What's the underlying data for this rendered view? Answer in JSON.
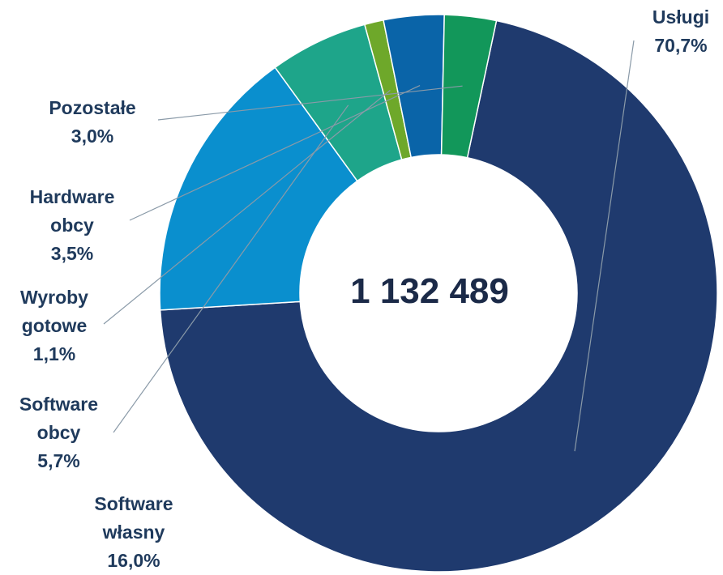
{
  "chart_data": {
    "type": "pie",
    "center_label": "1 132 489",
    "slices": [
      {
        "name_lines": [
          "Usługi"
        ],
        "value": 70.7,
        "value_label": "70,7%",
        "color": "#1f3a6e"
      },
      {
        "name_lines": [
          "Software",
          "własny"
        ],
        "value": 16.0,
        "value_label": "16,0%",
        "color": "#0a8fce"
      },
      {
        "name_lines": [
          "Software",
          "obcy"
        ],
        "value": 5.7,
        "value_label": "5,7%",
        "color": "#1ea58a"
      },
      {
        "name_lines": [
          "Wyroby",
          "gotowe"
        ],
        "value": 1.1,
        "value_label": "1,1%",
        "color": "#6ea82a"
      },
      {
        "name_lines": [
          "Hardware",
          "obcy"
        ],
        "value": 3.5,
        "value_label": "3,5%",
        "color": "#0a64a8"
      },
      {
        "name_lines": [
          "Pozostałe"
        ],
        "value": 3.0,
        "value_label": "3,0%",
        "color": "#12975a"
      }
    ]
  }
}
